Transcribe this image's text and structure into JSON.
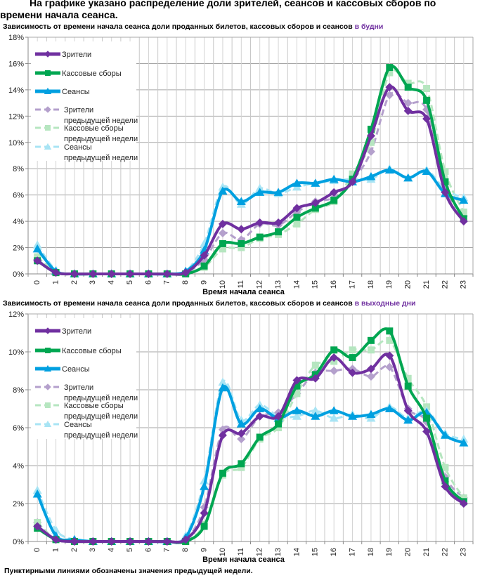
{
  "page": {
    "heading": "На графике указано распределение доли зрителей, сеансов и кассовых сборов по времени начала сеанса.",
    "footer_note": "Пунктирными линиями обозначены значения предыдущей недели."
  },
  "legend_labels": [
    "Зрители",
    "Кассовые сборы",
    "Сеансы",
    "Зрители предыдущей недели",
    "Кассовые сборы предыдущей недели",
    "Сеансы предыдущей недели"
  ],
  "colors": {
    "viewers": "#7030a0",
    "box_office": "#00a651",
    "sessions": "#00a0e0",
    "viewers_prev": "#b4a0cc",
    "box_office_prev": "#b6e6c0",
    "sessions_prev": "#a8e4f4"
  },
  "chart_data": [
    {
      "type": "line",
      "title": "Зависимость от времени начала сеанса доли проданных билетов, кассовых сборов и сеансов",
      "title_highlight": "в будни",
      "xlabel": "Время начала сеанса",
      "ylabel": "",
      "x": [
        0,
        1,
        2,
        3,
        4,
        5,
        6,
        7,
        8,
        9,
        10,
        11,
        12,
        13,
        14,
        15,
        16,
        17,
        18,
        19,
        20,
        21,
        22,
        23
      ],
      "ylim": [
        0,
        18
      ],
      "yticks": [
        "0%",
        "2%",
        "4%",
        "6%",
        "8%",
        "10%",
        "12%",
        "14%",
        "16%",
        "18%"
      ],
      "grid": true,
      "legend": "top-left",
      "series": [
        {
          "name": "Зрители",
          "key": "viewers",
          "marker": "diamond",
          "dashed": false,
          "values": [
            1.0,
            0.1,
            0,
            0,
            0,
            0,
            0,
            0,
            0.1,
            1.4,
            3.8,
            3.4,
            3.9,
            3.9,
            5.0,
            5.4,
            6.2,
            7.0,
            10.5,
            14.2,
            12.4,
            11.8,
            6.2,
            4.0
          ]
        },
        {
          "name": "Кассовые сборы",
          "key": "box_office",
          "marker": "square",
          "dashed": false,
          "values": [
            1.0,
            0.1,
            0,
            0,
            0,
            0,
            0,
            0,
            0,
            0.6,
            2.3,
            2.3,
            2.8,
            3.2,
            4.3,
            5.0,
            5.6,
            7.2,
            11.0,
            15.7,
            14.2,
            13.2,
            7.0,
            4.2
          ]
        },
        {
          "name": "Сеансы",
          "key": "sessions",
          "marker": "triangle",
          "dashed": false,
          "values": [
            1.9,
            0.2,
            0,
            0,
            0,
            0,
            0,
            0,
            0.2,
            1.8,
            6.3,
            5.5,
            6.2,
            6.2,
            6.9,
            6.9,
            7.2,
            7.0,
            7.4,
            7.9,
            7.3,
            7.8,
            6.1,
            5.6
          ]
        },
        {
          "name": "Зрители предыдущей недели",
          "key": "viewers_prev",
          "marker": "diamond",
          "dashed": true,
          "values": [
            1.1,
            0.1,
            0,
            0,
            0,
            0,
            0,
            0,
            0.1,
            1.1,
            3.1,
            2.6,
            3.8,
            3.7,
            4.7,
            5.5,
            5.8,
            7.1,
            9.3,
            13.6,
            13.0,
            12.5,
            6.6,
            4.4
          ]
        },
        {
          "name": "Кассовые сборы предыдущей недели",
          "key": "box_office_prev",
          "marker": "square",
          "dashed": true,
          "values": [
            1.3,
            0.1,
            0,
            0,
            0,
            0,
            0,
            0,
            0,
            0.5,
            1.9,
            2.0,
            2.7,
            3.0,
            3.8,
            4.9,
            5.5,
            7.6,
            10.0,
            15.3,
            14.5,
            14.1,
            7.8,
            4.7
          ]
        },
        {
          "name": "Сеансы предыдущей недели",
          "key": "sessions_prev",
          "marker": "triangle",
          "dashed": true,
          "values": [
            2.2,
            0.3,
            0,
            0,
            0,
            0,
            0,
            0,
            0.2,
            2.3,
            6.6,
            5.3,
            6.5,
            6.1,
            6.6,
            6.9,
            7.1,
            7.2,
            7.2,
            8.0,
            7.3,
            7.9,
            6.4,
            5.8
          ]
        }
      ]
    },
    {
      "type": "line",
      "title": "Зависимость от времени начала сеанса доли проданных билетов, кассовых сборов и сеансов",
      "title_highlight": "в выходные дни",
      "xlabel": "Время начала сеанса",
      "ylabel": "",
      "x": [
        0,
        1,
        2,
        3,
        4,
        5,
        6,
        7,
        8,
        9,
        10,
        11,
        12,
        13,
        14,
        15,
        16,
        17,
        18,
        19,
        20,
        21,
        22,
        23
      ],
      "ylim": [
        0,
        12
      ],
      "yticks": [
        "0%",
        "2%",
        "4%",
        "6%",
        "8%",
        "10%",
        "12%"
      ],
      "grid": true,
      "legend": "top-left",
      "series": [
        {
          "name": "Зрители",
          "key": "viewers",
          "marker": "diamond",
          "dashed": false,
          "values": [
            0.8,
            0.1,
            0,
            0,
            0,
            0,
            0,
            0,
            0.1,
            1.5,
            5.6,
            5.7,
            6.6,
            6.6,
            8.5,
            8.6,
            9.7,
            8.9,
            9.1,
            9.8,
            6.9,
            5.8,
            2.9,
            2.0
          ]
        },
        {
          "name": "Кассовые сборы",
          "key": "box_office",
          "marker": "square",
          "dashed": false,
          "values": [
            0.7,
            0.1,
            0,
            0,
            0,
            0,
            0,
            0,
            0,
            0.8,
            3.6,
            4.1,
            5.5,
            6.2,
            8.2,
            8.8,
            10.1,
            9.7,
            10.6,
            11.1,
            8.2,
            6.5,
            3.2,
            2.1
          ]
        },
        {
          "name": "Сеансы",
          "key": "sessions",
          "marker": "triangle",
          "dashed": false,
          "values": [
            2.5,
            0.3,
            0.1,
            0,
            0,
            0,
            0,
            0,
            0.2,
            2.9,
            8.1,
            6.2,
            7.0,
            6.5,
            6.9,
            6.6,
            6.9,
            6.6,
            6.7,
            7.0,
            6.4,
            6.8,
            5.6,
            5.2
          ]
        },
        {
          "name": "Зрители предыдущей недели",
          "key": "viewers_prev",
          "marker": "diamond",
          "dashed": true,
          "values": [
            1.0,
            0.1,
            0,
            0,
            0,
            0,
            0,
            0,
            0.1,
            1.8,
            5.9,
            5.4,
            6.6,
            6.8,
            7.8,
            8.9,
            9.0,
            9.1,
            8.7,
            9.2,
            7.0,
            6.3,
            3.4,
            2.3
          ]
        },
        {
          "name": "Кассовые сборы предыдущей недели",
          "key": "box_office_prev",
          "marker": "square",
          "dashed": true,
          "values": [
            1.0,
            0.1,
            0,
            0,
            0,
            0,
            0,
            0,
            0,
            0.9,
            3.5,
            3.9,
            5.4,
            6.0,
            7.8,
            9.3,
            9.5,
            10.1,
            10.1,
            10.6,
            8.6,
            7.1,
            3.9,
            2.3
          ]
        },
        {
          "name": "Сеансы предыдущей недели",
          "key": "sessions_prev",
          "marker": "triangle",
          "dashed": true,
          "values": [
            2.7,
            0.6,
            0.1,
            0,
            0,
            0,
            0,
            0,
            0.3,
            3.2,
            8.4,
            6.4,
            7.2,
            6.6,
            6.6,
            6.9,
            6.5,
            6.7,
            6.5,
            7.1,
            6.5,
            6.9,
            5.7,
            5.4
          ]
        }
      ]
    }
  ]
}
